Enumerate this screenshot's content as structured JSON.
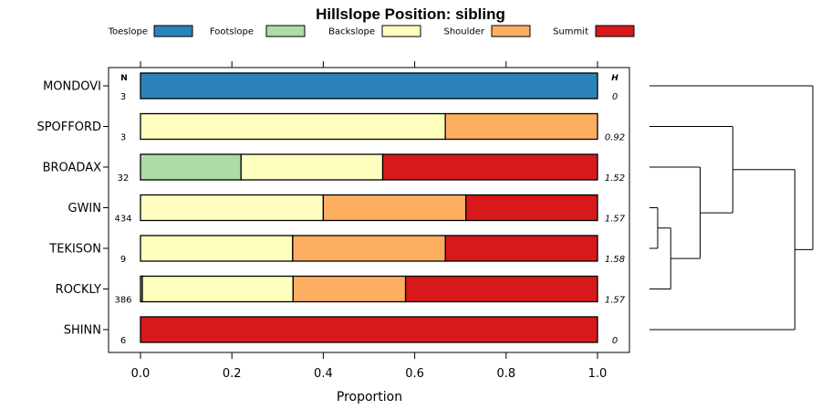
{
  "chart_data": {
    "type": "bar",
    "stacked": true,
    "orientation": "horizontal",
    "title": "Hillslope Position: sibling",
    "xlabel": "Proportion",
    "ylabel": "",
    "xlim": [
      0,
      1
    ],
    "x_ticks": [
      "0.0",
      "0.2",
      "0.4",
      "0.6",
      "0.8",
      "1.0"
    ],
    "x_tick_values": [
      0,
      0.2,
      0.4,
      0.6,
      0.8,
      1.0
    ],
    "legend_position": "top",
    "column_headers": {
      "n": "N",
      "h": "H"
    },
    "categories": [
      "MONDOVI",
      "SPOFFORD",
      "BROADAX",
      "GWIN",
      "TEKISON",
      "ROCKLY",
      "SHINN"
    ],
    "n": [
      "3",
      "3",
      "32",
      "434",
      "9",
      "386",
      "6"
    ],
    "h": [
      "0",
      "0.92",
      "1.52",
      "1.57",
      "1.58",
      "1.57",
      "0"
    ],
    "series": [
      {
        "name": "Toeslope",
        "color": "#2b83ba",
        "values": [
          1,
          0,
          0,
          0,
          0,
          0,
          0
        ]
      },
      {
        "name": "Footslope",
        "color": "#abdda4",
        "values": [
          0,
          0,
          0.22,
          0,
          0,
          0.004,
          0
        ]
      },
      {
        "name": "Backslope",
        "color": "#ffffbf",
        "values": [
          0,
          0.667,
          0.31,
          0.4,
          0.333,
          0.33,
          0
        ]
      },
      {
        "name": "Shoulder",
        "color": "#fdae61",
        "values": [
          0,
          0.333,
          0,
          0.312,
          0.334,
          0.246,
          0
        ]
      },
      {
        "name": "Summit",
        "color": "#d7191c",
        "values": [
          0,
          0,
          0.47,
          0.288,
          0.333,
          0.42,
          1
        ]
      }
    ],
    "dendrogram": {
      "description": "hierarchical clustering of sites",
      "leaf_order": [
        "MONDOVI",
        "SPOFFORD",
        "BROADAX",
        "GWIN",
        "TEKISON",
        "ROCKLY",
        "SHINN"
      ],
      "merges": [
        {
          "left": "GWIN",
          "right": "TEKISON",
          "height": 0.05
        },
        {
          "left": "GWIN+TEKISON",
          "right": "ROCKLY",
          "height": 0.13
        },
        {
          "left": "GWIN+TEKISON+ROCKLY",
          "right": "BROADAX",
          "height": 0.31
        },
        {
          "left": "BROADAX+GWIN+TEKISON+ROCKLY",
          "right": "SPOFFORD",
          "height": 0.51
        },
        {
          "left": "SPOFFORD+BROADAX+GWIN+TEKISON+ROCKLY",
          "right": "SHINN",
          "height": 0.89
        },
        {
          "left": "MONDOVI",
          "right": "rest",
          "height": 1.0
        }
      ]
    }
  }
}
